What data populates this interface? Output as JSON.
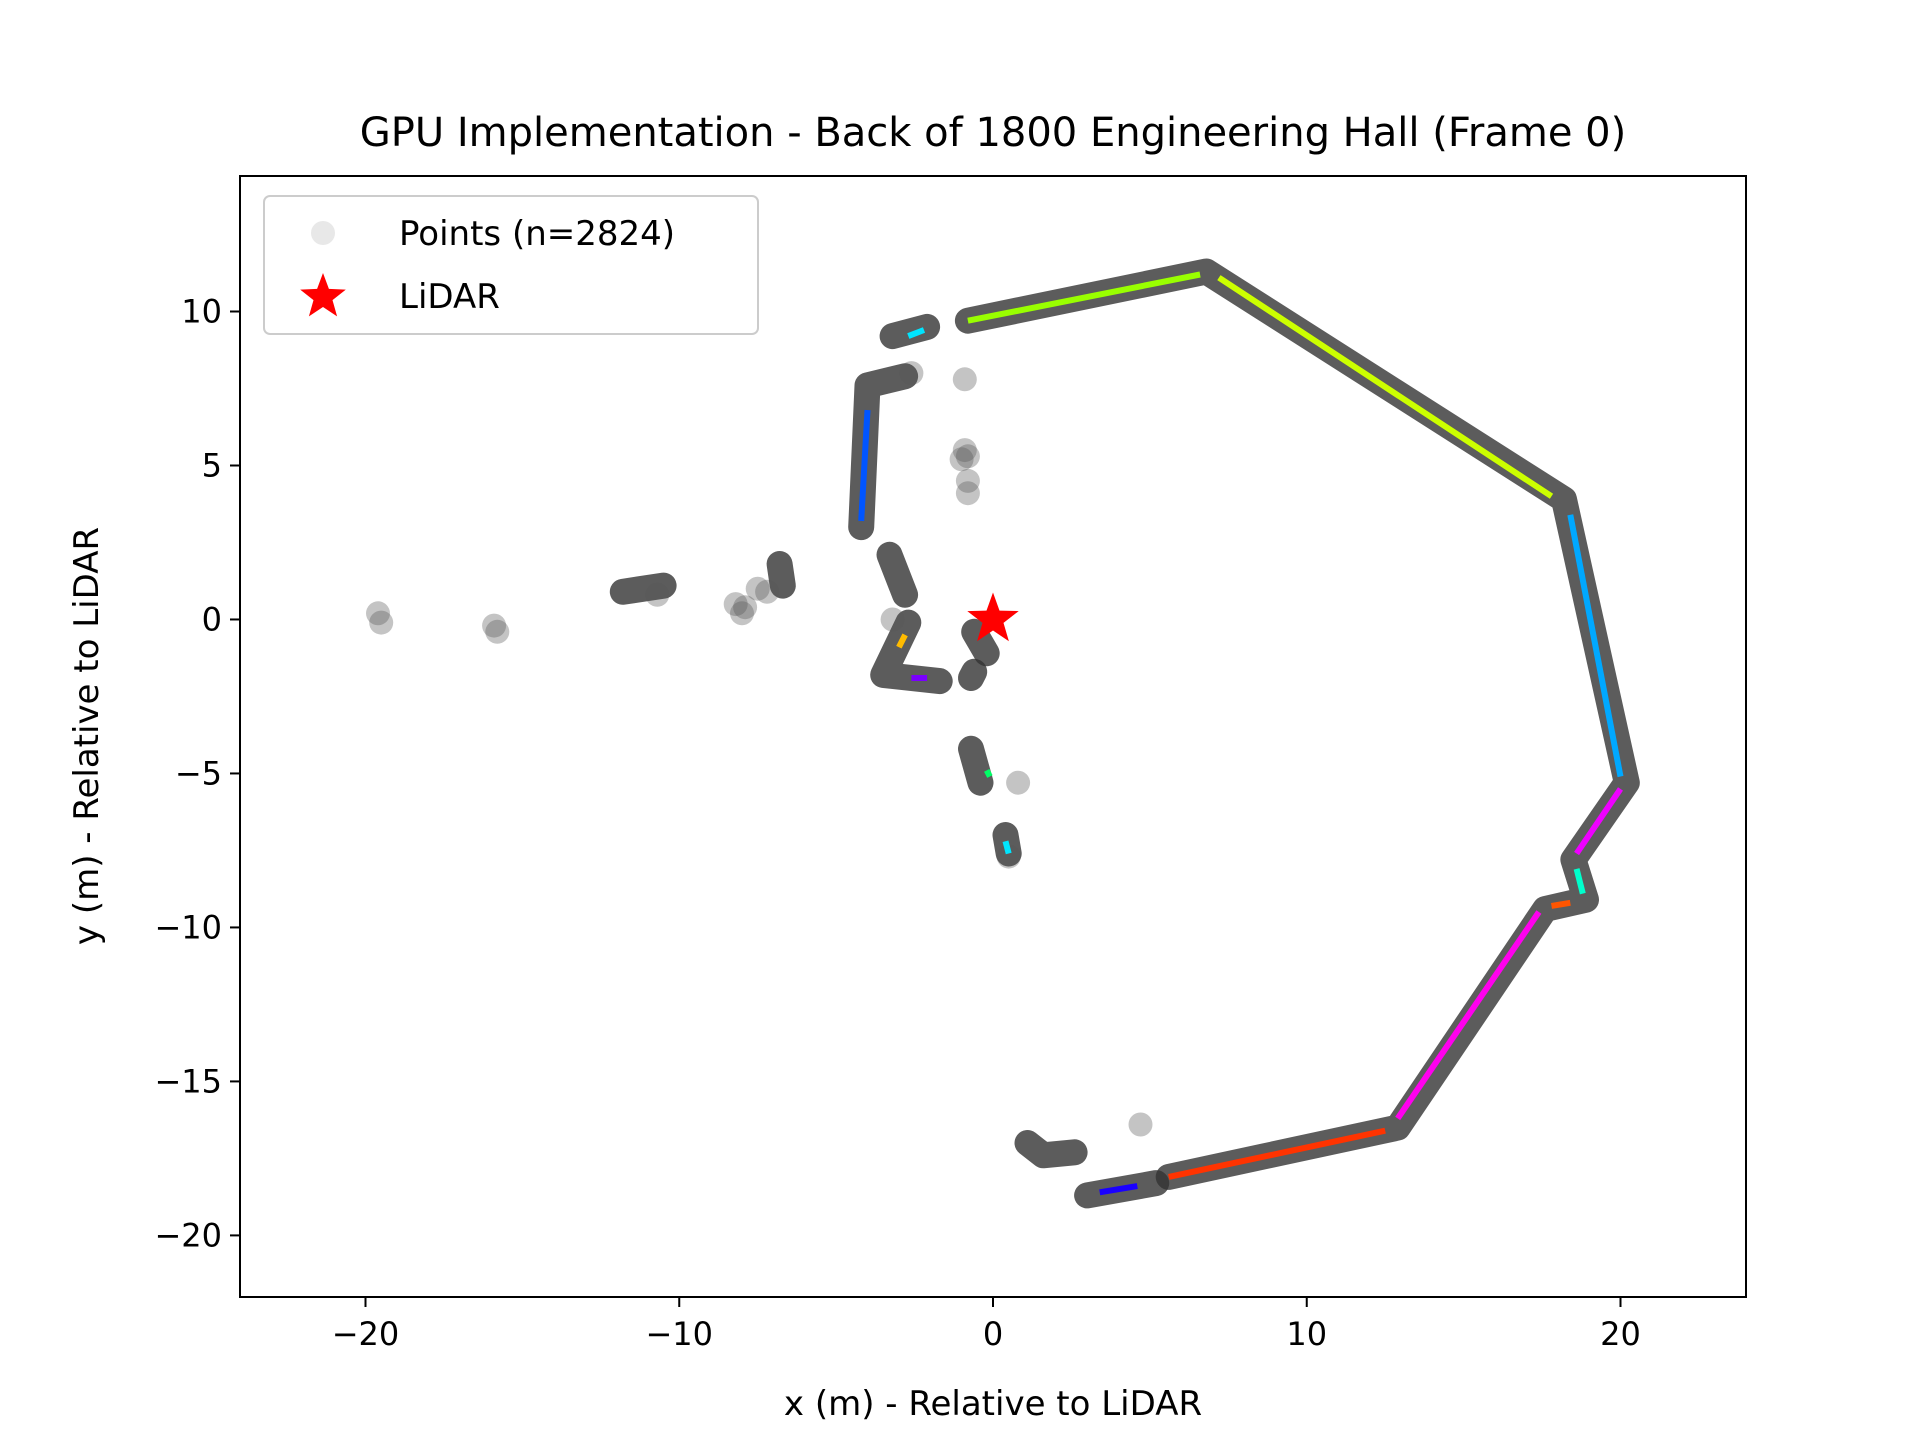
{
  "chart_data": {
    "type": "scatter",
    "title": "GPU Implementation - Back of 1800 Engineering Hall (Frame 0)",
    "xlabel": "x (m) - Relative to LiDAR",
    "ylabel": "y (m) - Relative to LiDAR",
    "xlim": [
      -24,
      24
    ],
    "ylim": [
      -22,
      14.4
    ],
    "xticks": [
      -20,
      -10,
      0,
      10,
      20
    ],
    "yticks": [
      -20,
      -15,
      -10,
      -5,
      0,
      5,
      10
    ],
    "xtick_labels": [
      "−20",
      "−10",
      "0",
      "10",
      "20"
    ],
    "ytick_labels": [
      "−20",
      "−15",
      "−10",
      "−5",
      "0",
      "5",
      "10"
    ],
    "grid": false,
    "legend_position": "top-left",
    "legend": [
      {
        "label": "Points (n=2824)",
        "marker": "circle",
        "color": "#bdbdbd"
      },
      {
        "label": "LiDAR",
        "marker": "star",
        "color": "#ff0000"
      }
    ],
    "lidar": {
      "x": 0,
      "y": 0,
      "color": "#ff0000"
    },
    "wall_point_paths": [
      {
        "points": [
          [
            -0.8,
            9.7
          ],
          [
            6.8,
            11.3
          ],
          [
            18.2,
            3.9
          ],
          [
            20.2,
            -5.3
          ],
          [
            18.5,
            -7.8
          ],
          [
            18.9,
            -9.1
          ],
          [
            17.6,
            -9.4
          ],
          [
            12.9,
            -16.5
          ],
          [
            5.6,
            -18.1
          ]
        ]
      },
      {
        "points": [
          [
            -4.2,
            3.0
          ],
          [
            -4.0,
            7.6
          ],
          [
            -2.8,
            7.9
          ]
        ]
      },
      {
        "points": [
          [
            -3.2,
            9.2
          ],
          [
            -2.1,
            9.5
          ]
        ]
      },
      {
        "points": [
          [
            -2.7,
            -0.1
          ],
          [
            -3.5,
            -1.8
          ],
          [
            -1.7,
            -2.0
          ]
        ]
      },
      {
        "points": [
          [
            -3.3,
            2.1
          ],
          [
            -2.8,
            0.8
          ]
        ]
      },
      {
        "points": [
          [
            -6.8,
            1.8
          ],
          [
            -6.7,
            1.1
          ]
        ]
      },
      {
        "points": [
          [
            -0.7,
            -4.2
          ],
          [
            -0.4,
            -5.3
          ]
        ]
      },
      {
        "points": [
          [
            0.4,
            -7.0
          ],
          [
            0.5,
            -7.6
          ]
        ]
      },
      {
        "points": [
          [
            3.0,
            -18.7
          ],
          [
            5.2,
            -18.3
          ]
        ]
      },
      {
        "points": [
          [
            1.1,
            -17.0
          ],
          [
            1.6,
            -17.4
          ],
          [
            2.6,
            -17.3
          ]
        ]
      },
      {
        "points": [
          [
            -11.8,
            0.9
          ],
          [
            -10.5,
            1.1
          ]
        ]
      },
      {
        "points": [
          [
            -0.6,
            -0.4
          ],
          [
            -0.2,
            -1.1
          ]
        ]
      },
      {
        "points": [
          [
            -0.7,
            -1.9
          ],
          [
            -0.6,
            -1.7
          ]
        ]
      }
    ],
    "scatter_points": [
      {
        "x": -19.6,
        "y": 0.2
      },
      {
        "x": -19.5,
        "y": -0.1
      },
      {
        "x": -15.9,
        "y": -0.2
      },
      {
        "x": -15.8,
        "y": -0.4
      },
      {
        "x": -10.7,
        "y": 0.8
      },
      {
        "x": -8.2,
        "y": 0.5
      },
      {
        "x": -8.0,
        "y": 0.2
      },
      {
        "x": -7.9,
        "y": 0.4
      },
      {
        "x": -7.5,
        "y": 1.0
      },
      {
        "x": -7.2,
        "y": 0.9
      },
      {
        "x": -0.9,
        "y": 7.8
      },
      {
        "x": -0.9,
        "y": 5.5
      },
      {
        "x": -0.8,
        "y": 5.3
      },
      {
        "x": -1.0,
        "y": 5.2
      },
      {
        "x": -0.8,
        "y": 4.5
      },
      {
        "x": -0.8,
        "y": 4.1
      },
      {
        "x": -2.6,
        "y": 8.0
      },
      {
        "x": 0.8,
        "y": -5.3
      },
      {
        "x": 0.5,
        "y": -7.7
      },
      {
        "x": 4.7,
        "y": -16.4
      },
      {
        "x": -3.2,
        "y": 0.0
      }
    ],
    "segments": [
      {
        "color": "#99ff00",
        "x": [
          -0.8,
          6.6
        ],
        "y": [
          9.7,
          11.2
        ]
      },
      {
        "color": "#ccff00",
        "x": [
          7.2,
          17.8
        ],
        "y": [
          11.1,
          4.0
        ]
      },
      {
        "color": "#00a8ff",
        "x": [
          18.4,
          20.0
        ],
        "y": [
          3.4,
          -5.1
        ]
      },
      {
        "color": "#ee00ff",
        "x": [
          20.0,
          18.6
        ],
        "y": [
          -5.5,
          -7.6
        ]
      },
      {
        "color": "#00ffcc",
        "x": [
          18.6,
          18.8
        ],
        "y": [
          -8.1,
          -8.9
        ]
      },
      {
        "color": "#ff5500",
        "x": [
          18.4,
          17.8
        ],
        "y": [
          -9.2,
          -9.3
        ]
      },
      {
        "color": "#ff00ee",
        "x": [
          17.4,
          12.9
        ],
        "y": [
          -9.5,
          -16.2
        ]
      },
      {
        "color": "#ff3300",
        "x": [
          12.5,
          5.6
        ],
        "y": [
          -16.6,
          -18.1
        ]
      },
      {
        "color": "#1a00ff",
        "x": [
          3.4,
          4.6
        ],
        "y": [
          -18.6,
          -18.4
        ]
      },
      {
        "color": "#0055ff",
        "x": [
          -4.0,
          -4.2
        ],
        "y": [
          6.8,
          3.2
        ]
      },
      {
        "color": "#00e5ff",
        "x": [
          -2.7,
          -2.2
        ],
        "y": [
          9.2,
          9.4
        ]
      },
      {
        "color": "#ffbb00",
        "x": [
          -2.8,
          -3.0
        ],
        "y": [
          -0.5,
          -0.9
        ]
      },
      {
        "color": "#7a00ff",
        "x": [
          -2.6,
          -2.1
        ],
        "y": [
          -1.9,
          -1.9
        ]
      },
      {
        "color": "#00ff66",
        "x": [
          -0.2,
          -0.1
        ],
        "y": [
          -4.9,
          -5.1
        ]
      },
      {
        "color": "#00e5ff",
        "x": [
          0.4,
          0.5
        ],
        "y": [
          -7.2,
          -7.6
        ]
      }
    ]
  }
}
